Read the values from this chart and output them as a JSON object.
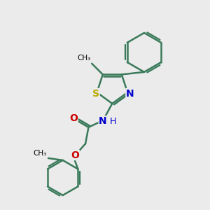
{
  "bg_color": "#ebebeb",
  "bond_color": "#3a7a5a",
  "bond_width": 1.8,
  "S_color": "#bbaa00",
  "N_color": "#0000cc",
  "O_color": "#cc0000",
  "C_color": "#000000",
  "font_size": 9,
  "fig_size": [
    3.0,
    3.0
  ],
  "dpi": 100,
  "xlim": [
    0,
    10
  ],
  "ylim": [
    0,
    10
  ]
}
